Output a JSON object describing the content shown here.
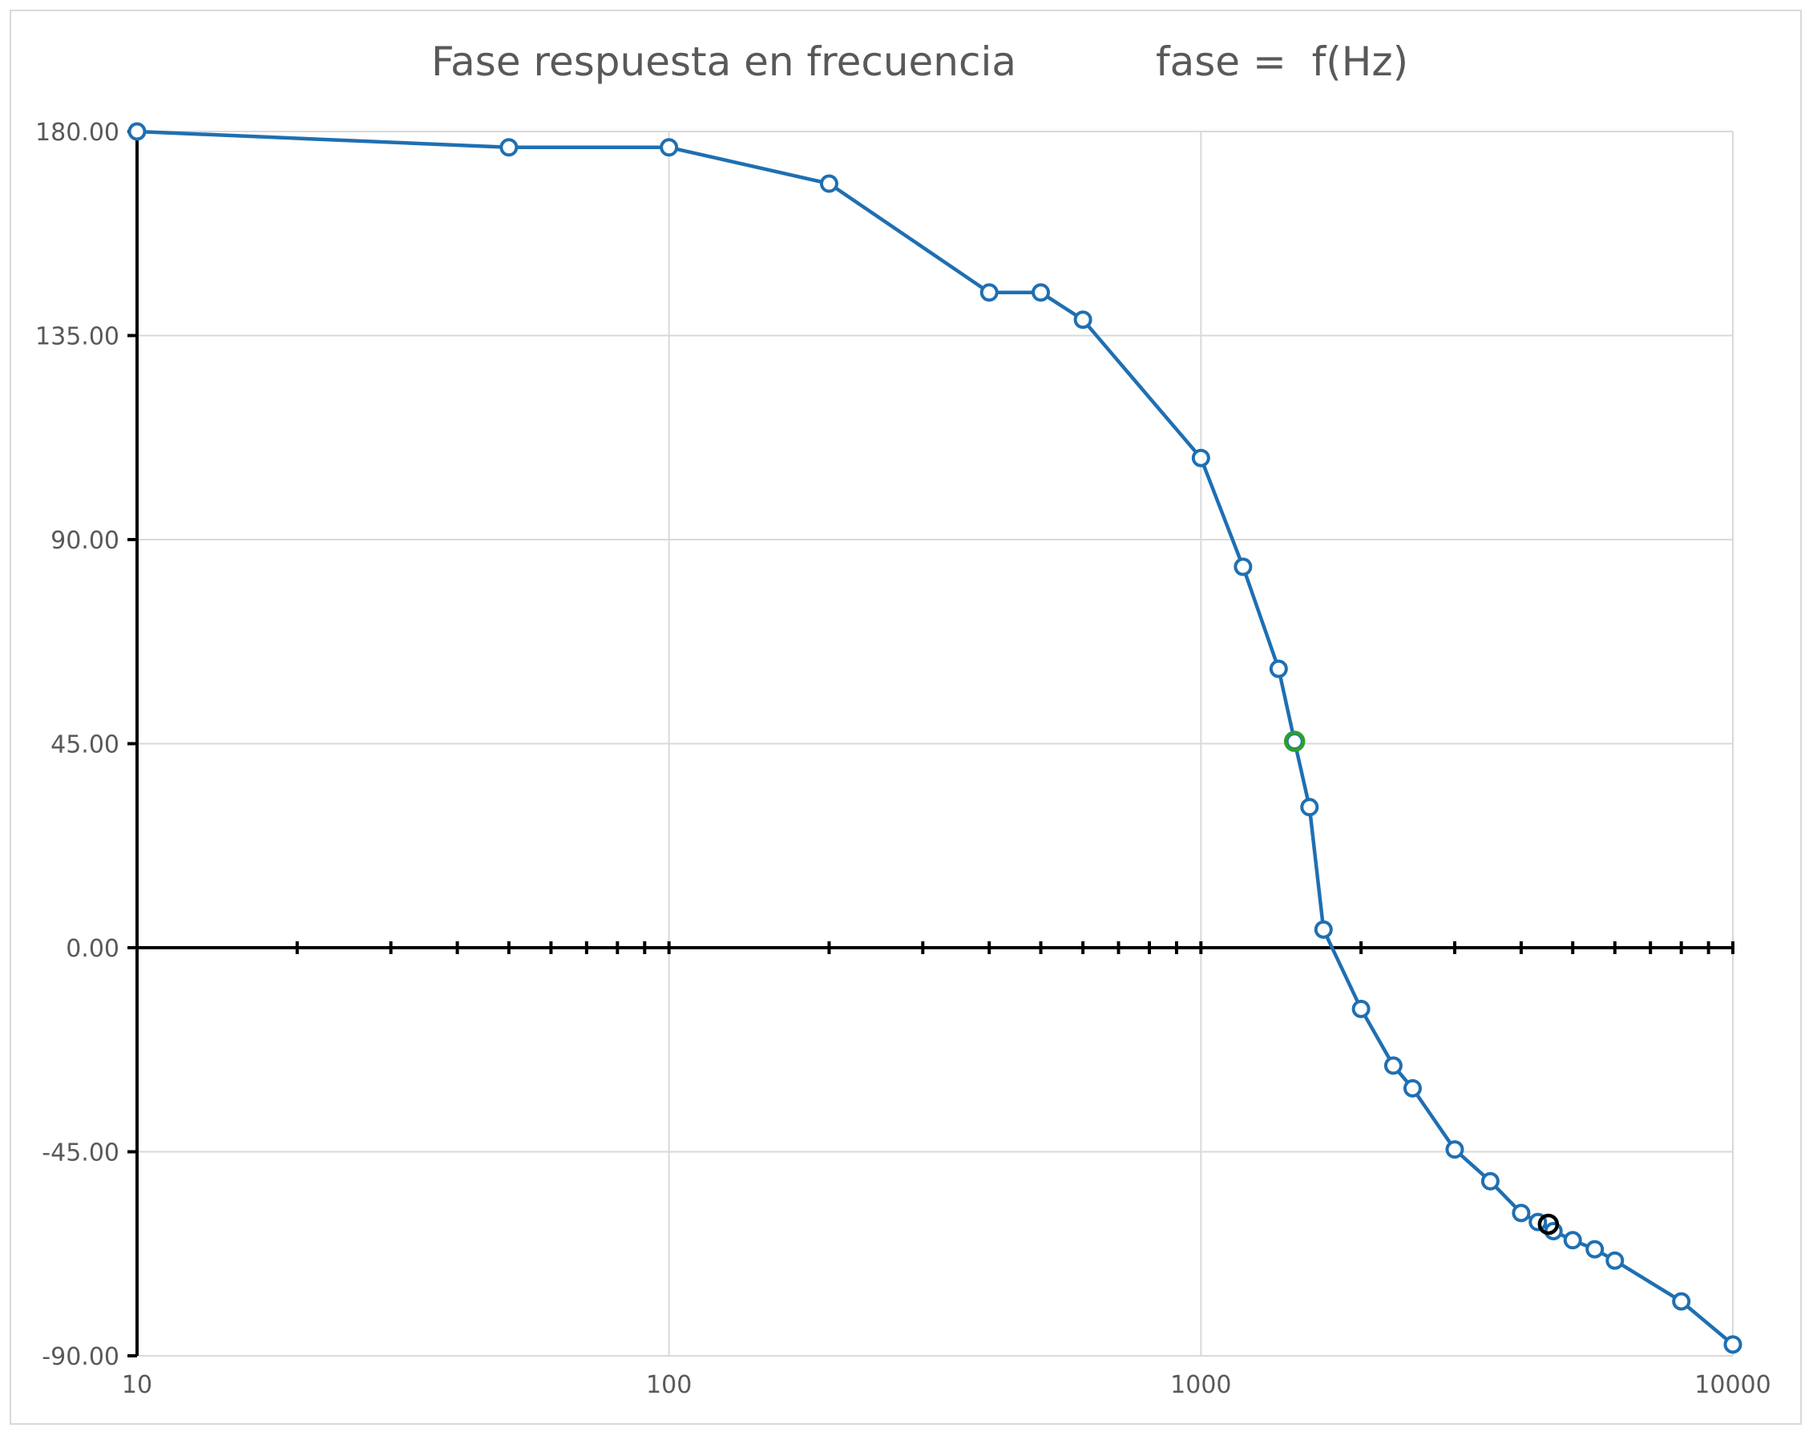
{
  "chart_data": {
    "type": "scatter",
    "title": "Fase respuesta en frecuencia",
    "subtitle": "fase =  f(Hz)",
    "xlabel": "",
    "ylabel": "",
    "x_scale": "log",
    "xlim": [
      10,
      10000
    ],
    "ylim": [
      -90,
      180
    ],
    "x_ticks": [
      10,
      100,
      1000,
      10000
    ],
    "x_tick_labels": [
      "10",
      "100",
      "1000",
      "10000"
    ],
    "y_ticks": [
      180,
      135,
      90,
      45,
      0,
      -45,
      -90
    ],
    "y_tick_labels": [
      "180.00",
      "135.00",
      "90.00",
      "45.00",
      "0.00",
      "-45.00",
      "-90.00"
    ],
    "grid": true,
    "legend": "none",
    "series": [
      {
        "color": "#1f6fb2",
        "line": true,
        "marker": "open-circle",
        "x": [
          10,
          50,
          100,
          200,
          400,
          500,
          600,
          1000,
          1200,
          1400,
          1500,
          1600,
          1700,
          2000,
          2300,
          2500,
          3000,
          3500,
          4000,
          4300,
          4600,
          5000,
          5500,
          6000,
          8000,
          10000
        ],
        "y": [
          180,
          176.5,
          176.5,
          168.5,
          144.5,
          144.5,
          138.5,
          108,
          84,
          61.5,
          45.5,
          31,
          4,
          -13.5,
          -26,
          -31,
          -44.5,
          -51.5,
          -58.5,
          -60.5,
          -62.5,
          -64.5,
          -66.5,
          -69,
          -78,
          -87.5
        ]
      }
    ],
    "highlighted_points": [
      {
        "x": 1500,
        "y": 45.5,
        "color": "#2ca02c"
      },
      {
        "x": 4500,
        "y": -61,
        "color": "#000000"
      }
    ]
  },
  "colors": {
    "series": "#1f6fb2",
    "grid": "#d9d9d9",
    "axis": "#000000",
    "text": "#595959"
  }
}
